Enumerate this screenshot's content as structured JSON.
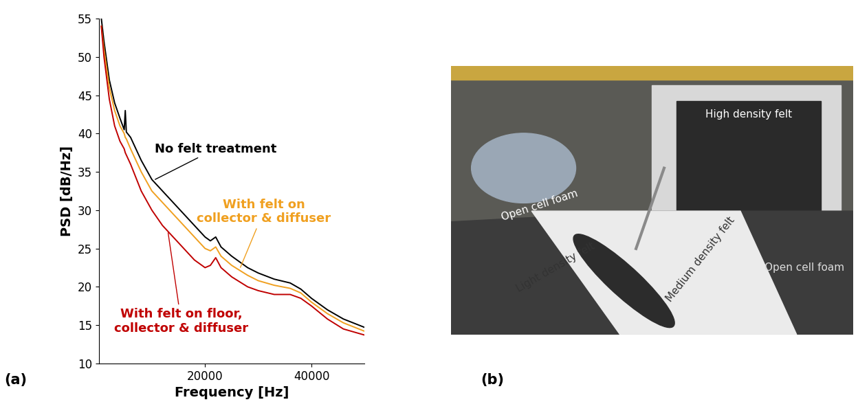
{
  "chart_data": {
    "type": "line",
    "x_label": "Frequency [Hz]",
    "y_label": "PSD [dB/Hz]",
    "x": [
      500,
      1000,
      2000,
      3000,
      4000,
      4800,
      5000,
      5200,
      6000,
      8000,
      10000,
      12000,
      14000,
      16000,
      18000,
      20000,
      21000,
      22000,
      23000,
      25000,
      28000,
      30000,
      33000,
      36000,
      38000,
      40000,
      43000,
      46000,
      50000
    ],
    "series": [
      {
        "name": "No felt treatment",
        "color": "#000000",
        "values": [
          55,
          52,
          47,
          44,
          42,
          40.5,
          43,
          40.2,
          39.5,
          36.5,
          34,
          32.5,
          31,
          29.5,
          28,
          26.5,
          26,
          26.5,
          25.2,
          24,
          22.5,
          21.8,
          21,
          20.5,
          19.7,
          18.5,
          17,
          15.8,
          14.7
        ]
      },
      {
        "name": "With felt on\ncollector & diffuser",
        "color": "#f0a020",
        "values": [
          54,
          51,
          46,
          43,
          41,
          40,
          39.5,
          39.3,
          38,
          35,
          32.5,
          31,
          29.5,
          28,
          26.5,
          25,
          24.7,
          25.2,
          24,
          22.8,
          21.5,
          20.8,
          20.2,
          19.8,
          19.2,
          18,
          16.5,
          15.3,
          14.2
        ]
      },
      {
        "name": "With felt on floor,\ncollector & diffuser",
        "color": "#c00000",
        "values": [
          54,
          50,
          44.5,
          41,
          39,
          38,
          37.5,
          37.2,
          36,
          32.5,
          30,
          28,
          26.5,
          25,
          23.5,
          22.5,
          22.8,
          23.8,
          22.5,
          21.3,
          20,
          19.5,
          19,
          19,
          18.5,
          17.5,
          15.8,
          14.5,
          13.7
        ]
      }
    ],
    "xlim": [
      0,
      50000
    ],
    "xticks": [
      20000,
      40000
    ],
    "ylim": [
      10,
      55
    ],
    "yticks": [
      10,
      15,
      20,
      25,
      30,
      35,
      40,
      45,
      50,
      55
    ],
    "grid": false
  },
  "panel_labels": [
    "(a)",
    "(b)"
  ],
  "photo": {
    "labels": [
      "Open cell foam",
      "Light density felt",
      "Medium density felt",
      "High density felt",
      "Open cell foam"
    ]
  }
}
